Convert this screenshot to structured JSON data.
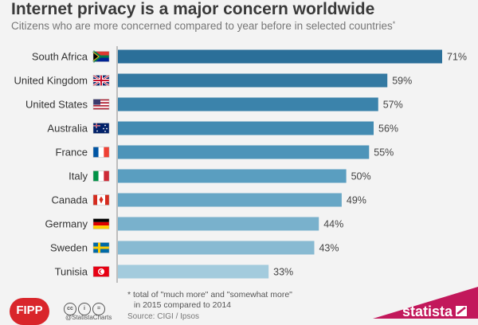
{
  "header": {
    "title": "Internet privacy is a major concern worldwide",
    "subtitle": "Citizens who are more concerned compared to year before in selected countries",
    "subtitle_mark": "*"
  },
  "chart_data": {
    "type": "bar",
    "orientation": "horizontal",
    "title": "Internet privacy is a major concern worldwide",
    "subtitle": "Citizens who are more concerned compared to year before in selected countries*",
    "categories": [
      "South Africa",
      "United Kingdom",
      "United States",
      "Australia",
      "France",
      "Italy",
      "Canada",
      "Germany",
      "Sweden",
      "Tunisia"
    ],
    "values": [
      71,
      59,
      57,
      56,
      55,
      50,
      49,
      44,
      43,
      33
    ],
    "value_labels": [
      "71%",
      "59%",
      "57%",
      "56%",
      "55%",
      "50%",
      "49%",
      "44%",
      "43%",
      "33%"
    ],
    "flags": [
      "south-africa-flag-icon",
      "uk-flag-icon",
      "us-flag-icon",
      "australia-flag-icon",
      "france-flag-icon",
      "italy-flag-icon",
      "canada-flag-icon",
      "germany-flag-icon",
      "sweden-flag-icon",
      "tunisia-flag-icon"
    ],
    "bar_colors": [
      "#2b6f99",
      "#3479a2",
      "#3b83ab",
      "#438bb2",
      "#4d94b9",
      "#5a9ec0",
      "#68a7c6",
      "#79b1cc",
      "#88bad2",
      "#a3cbdd"
    ],
    "xlim": [
      0,
      71
    ],
    "grid": false,
    "legend": "none"
  },
  "footnote": {
    "line1": "* total of \"much more\" and \"somewhat more\"",
    "line2": "in 2015 compared to 2014"
  },
  "source": "Source: CIGI / Ipsos",
  "branding": {
    "fipp": "FIPP",
    "handle": "@StatistaCharts",
    "statista": "statista",
    "cc_icons": [
      "cc-icon",
      "by-icon",
      "nd-icon"
    ],
    "accent": "#c2185b"
  }
}
